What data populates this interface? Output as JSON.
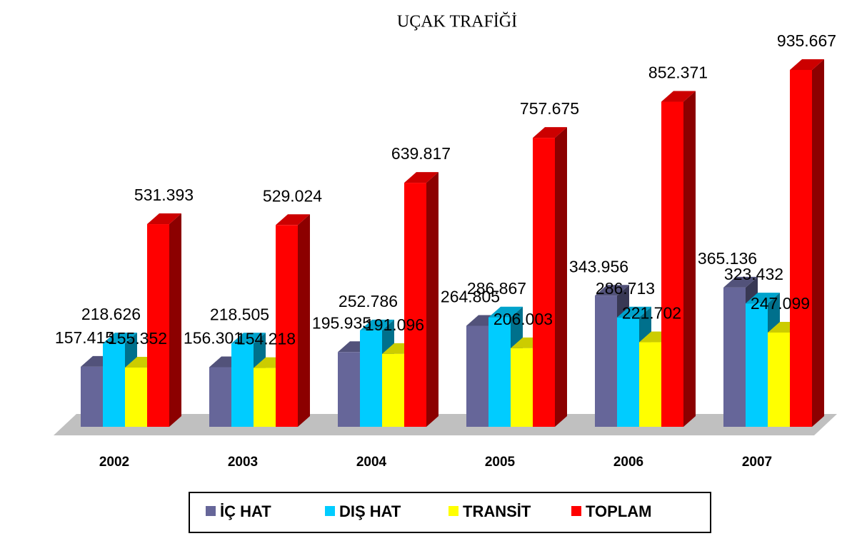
{
  "chart_data": {
    "type": "bar3d",
    "title": "UÇAK TRAFİĞİ",
    "categories": [
      "2002",
      "2003",
      "2004",
      "2005",
      "2006",
      "2007"
    ],
    "series": [
      {
        "name": "İÇ HAT",
        "color": "#666699",
        "values": [
          157415,
          156301,
          195935,
          264805,
          343956,
          365136
        ],
        "value_labels": [
          "157.415",
          "156.301",
          "195.935",
          "264.805",
          "343.956",
          "365.136"
        ]
      },
      {
        "name": "DIŞ HAT",
        "color": "#00ccff",
        "values": [
          218626,
          218505,
          252786,
          286867,
          286713,
          323432
        ],
        "value_labels": [
          "218.626",
          "218.505",
          "252.786",
          "286.867",
          "286.713",
          "323.432"
        ]
      },
      {
        "name": "TRANSİT",
        "color": "#ffff00",
        "values": [
          155352,
          154218,
          191096,
          206003,
          221702,
          247099
        ],
        "value_labels": [
          "155.352",
          "154.218",
          "191.096",
          "206.003",
          "221.702",
          "247.099"
        ]
      },
      {
        "name": "TOPLAM",
        "color": "#ff0000",
        "values": [
          531393,
          529024,
          639817,
          757675,
          852371,
          935667
        ],
        "value_labels": [
          "531.393",
          "529.024",
          "639.817",
          "757.675",
          "852.371",
          "935.667"
        ]
      }
    ],
    "legend": "bottom"
  }
}
